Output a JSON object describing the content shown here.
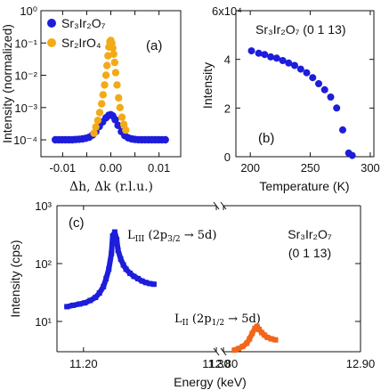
{
  "chart_data": [
    {
      "id": "a",
      "type": "scatter",
      "panel_label": "(a)",
      "ylabel": "Intensity (normalized)",
      "xlabel": "Δh, Δk (r.l.u.)",
      "yscale": "log",
      "xlim": [
        -0.0145,
        0.0145
      ],
      "ylim": [
        3e-05,
        1
      ],
      "xticks": [
        -0.01,
        -0.005,
        0,
        0.005,
        0.01
      ],
      "xtick_labels": [
        "-0.01",
        "",
        "0.00",
        "",
        "0.01"
      ],
      "ytick_labels": [
        "10⁻⁴",
        "10⁻³",
        "10⁻²",
        "10⁻¹",
        "10⁰"
      ],
      "legend_position": "top-left",
      "series": [
        {
          "name": "Sr₃Ir₂O₇",
          "color": "#1d1ddb",
          "points": [
            [
              -0.0115,
              0.0001
            ],
            [
              -0.0108,
              0.0001
            ],
            [
              -0.0101,
              0.0001
            ],
            [
              -0.0094,
              0.0001
            ],
            [
              -0.0087,
              0.0001
            ],
            [
              -0.008,
              0.0001
            ],
            [
              -0.0073,
              0.000102
            ],
            [
              -0.0066,
              0.000104
            ],
            [
              -0.0059,
              0.000107
            ],
            [
              -0.0052,
              0.000112
            ],
            [
              -0.0045,
              0.00012
            ],
            [
              -0.0038,
              0.00014
            ],
            [
              -0.0031,
              0.00018
            ],
            [
              -0.0024,
              0.00026
            ],
            [
              -0.0017,
              0.00036
            ],
            [
              -0.001,
              0.00048
            ],
            [
              -0.0004,
              0.00058
            ],
            [
              0.0,
              0.0006
            ],
            [
              0.0004,
              0.00055
            ],
            [
              0.0009,
              0.00042
            ],
            [
              0.0015,
              0.00028
            ],
            [
              0.0022,
              0.00018
            ],
            [
              0.0029,
              0.000135
            ],
            [
              0.0036,
              0.000115
            ],
            [
              0.0043,
              0.000107
            ],
            [
              0.005,
              0.000103
            ],
            [
              0.0057,
              0.000101
            ],
            [
              0.0064,
              0.0001
            ],
            [
              0.0071,
              0.0001
            ],
            [
              0.0078,
              0.0001
            ],
            [
              0.0085,
              0.0001
            ],
            [
              0.0092,
              0.0001
            ],
            [
              0.0099,
              0.0001
            ],
            [
              0.0106,
              0.0001
            ],
            [
              0.0113,
              0.0001
            ]
          ]
        },
        {
          "name": "Sr₂IrO₄",
          "color": "#f2aa16",
          "points": [
            [
              -0.0035,
              0.00016
            ],
            [
              -0.0031,
              0.00025
            ],
            [
              -0.0027,
              0.0004
            ],
            [
              -0.0023,
              0.0007
            ],
            [
              -0.0019,
              0.0013
            ],
            [
              -0.0016,
              0.0025
            ],
            [
              -0.0013,
              0.005
            ],
            [
              -0.001,
              0.01
            ],
            [
              -0.0008,
              0.02
            ],
            [
              -0.0006,
              0.04
            ],
            [
              -0.0004,
              0.075
            ],
            [
              -0.0002,
              0.11
            ],
            [
              0.0,
              0.12
            ],
            [
              0.0002,
              0.1
            ],
            [
              0.0004,
              0.07
            ],
            [
              0.0006,
              0.045
            ],
            [
              0.0008,
              0.025
            ],
            [
              0.001,
              0.012
            ],
            [
              0.0013,
              0.005
            ],
            [
              0.0016,
              0.002
            ],
            [
              0.0019,
              0.001
            ],
            [
              0.0023,
              0.0005
            ],
            [
              0.0027,
              0.0003
            ],
            [
              0.0031,
              0.0002
            ]
          ]
        }
      ]
    },
    {
      "id": "b",
      "type": "scatter",
      "panel_label": "(b)",
      "title": "Sr₃Ir₂O₇  (0 1 13)",
      "ylabel": "Intensity",
      "xlabel": "Temperature (K)",
      "exponent_label": "6x10⁴",
      "xlim": [
        188,
        303
      ],
      "ylim": [
        0,
        6
      ],
      "xticks": [
        200,
        250,
        300
      ],
      "yticks": [
        0,
        2,
        4
      ],
      "series": [
        {
          "name": "",
          "color": "#1d1ddb",
          "points": [
            [
              201,
              4.35
            ],
            [
              207,
              4.25
            ],
            [
              212,
              4.2
            ],
            [
              217,
              4.1
            ],
            [
              222,
              4.05
            ],
            [
              227,
              3.95
            ],
            [
              232,
              3.85
            ],
            [
              237,
              3.75
            ],
            [
              242,
              3.6
            ],
            [
              247,
              3.45
            ],
            [
              252,
              3.25
            ],
            [
              257,
              3.0
            ],
            [
              262,
              2.75
            ],
            [
              267,
              2.45
            ],
            [
              272,
              2.0
            ],
            [
              277,
              1.1
            ],
            [
              282,
              0.15
            ],
            [
              285,
              0.05
            ]
          ]
        }
      ]
    },
    {
      "id": "c",
      "type": "line",
      "panel_label": "(c)",
      "title_line1": "Sr₃Ir₂O₇",
      "title_line2": "(0 1 13)",
      "ylabel": "Intensity (cps)",
      "xlabel": "Energy (keV)",
      "yscale": "log",
      "ylim": [
        3,
        1000
      ],
      "ytick_labels": [
        "10¹",
        "10²",
        "10³"
      ],
      "broken_axis": true,
      "xlim_left": [
        11.18,
        11.3
      ],
      "xlim_right": [
        12.8,
        12.9
      ],
      "xticks_left": [
        11.2,
        11.3
      ],
      "xtick_labels_left": [
        "11.20",
        "11.30"
      ],
      "xticks_right": [
        12.8,
        12.9
      ],
      "xtick_labels_right": [
        "12.80",
        "12.90"
      ],
      "annotations": [
        {
          "text": "L",
          "sub": "III",
          "rest": " (2p",
          "sub2": "3/2",
          "arrow": " → 5d)"
        },
        {
          "text": "L",
          "sub": "II",
          "rest": " (2p",
          "sub2": "1/2",
          "arrow": " → 5d)"
        }
      ],
      "series": [
        {
          "name": "L_III edge",
          "color": "#1d1ddb",
          "segment": "left",
          "x": [
            11.1875,
            11.192,
            11.197,
            11.201,
            11.205,
            11.209,
            11.212,
            11.215,
            11.217,
            11.219,
            11.221,
            11.222,
            11.2235,
            11.225,
            11.226,
            11.228,
            11.23,
            11.232,
            11.235,
            11.238,
            11.241,
            11.244,
            11.247,
            11.25,
            11.253
          ],
          "y": [
            18,
            19,
            20,
            21,
            23,
            26,
            31,
            40,
            55,
            80,
            150,
            300,
            350,
            260,
            170,
            120,
            95,
            80,
            68,
            60,
            55,
            50,
            47,
            45,
            44
          ]
        },
        {
          "name": "L_II edge",
          "color": "#f2661a",
          "segment": "right",
          "x": [
            12.808,
            12.811,
            12.814,
            12.817,
            12.819,
            12.821,
            12.823,
            12.8245,
            12.826,
            12.828,
            12.83,
            12.832,
            12.835,
            12.838
          ],
          "y": [
            3.2,
            3.4,
            3.7,
            4.2,
            5.0,
            6.2,
            7.6,
            8.2,
            7.3,
            6.4,
            5.8,
            5.3,
            5.0,
            4.8
          ]
        }
      ]
    }
  ]
}
